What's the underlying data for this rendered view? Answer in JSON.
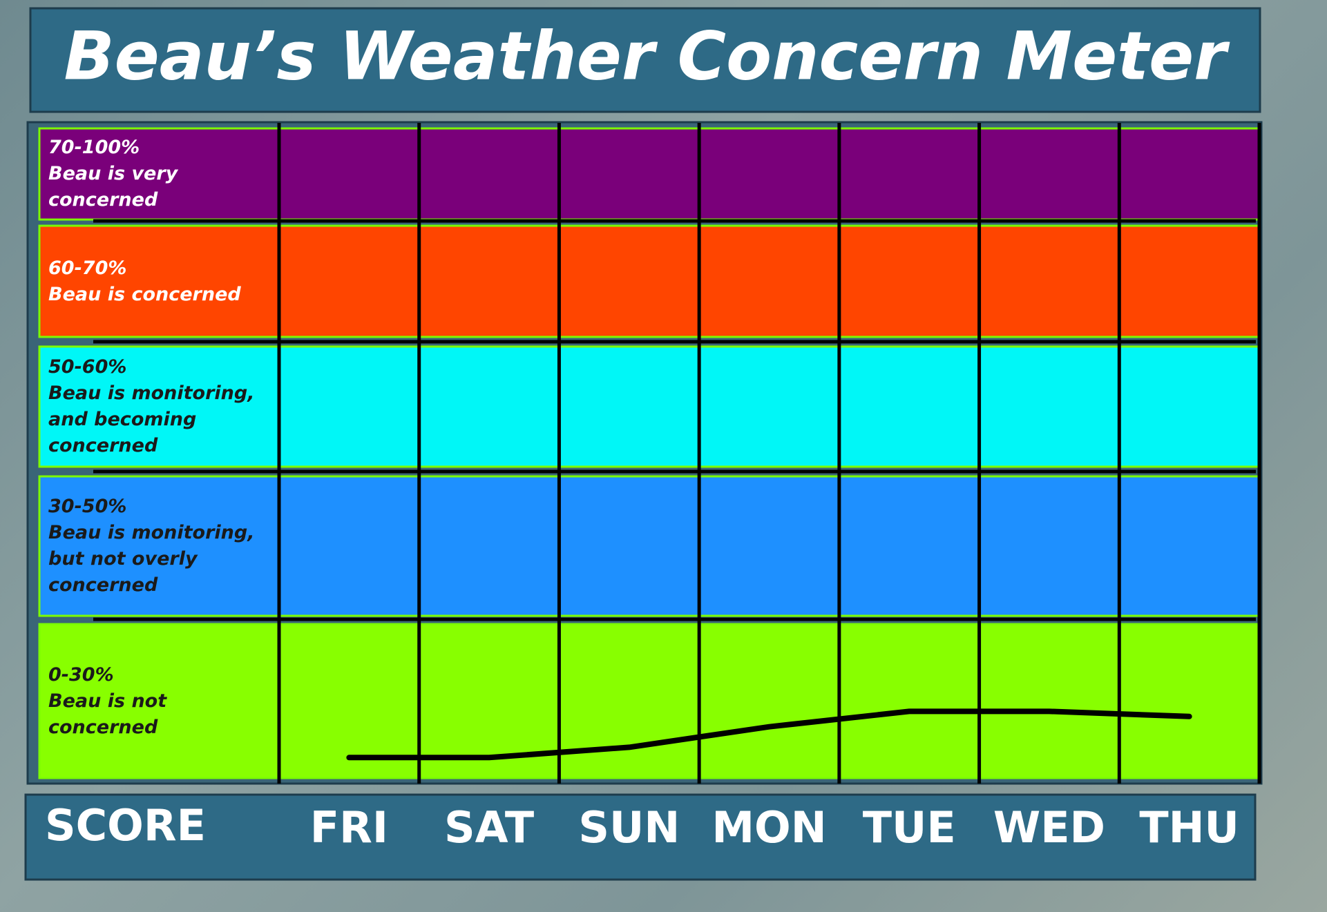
{
  "chart_data": {
    "type": "line",
    "title": "Beau’s Weather Concern Meter",
    "score_label": "SCORE",
    "categories": [
      "FRI",
      "SAT",
      "SUN",
      "MON",
      "TUE",
      "WED",
      "THU"
    ],
    "values": [
      4,
      4,
      6,
      10,
      13,
      13,
      12
    ],
    "color": "#000000",
    "ylim": [
      0,
      100
    ],
    "bands": [
      {
        "label": "70-100%",
        "text": "Beau is very concerned",
        "from": 70,
        "to": 100,
        "color": "#7a007a"
      },
      {
        "label": "60-70%",
        "text": "Beau is concerned",
        "from": 60,
        "to": 70,
        "color": "#ff4500"
      },
      {
        "label": "50-60%",
        "text": "Beau is monitoring, and becoming concerned",
        "from": 50,
        "to": 60,
        "color": "#00f7f7"
      },
      {
        "label": "30-50%",
        "text": "Beau is monitoring, but not overly concerned",
        "from": 30,
        "to": 50,
        "color": "#1e90ff"
      },
      {
        "label": "0-30%",
        "text": "Beau is not concerned",
        "from": 0,
        "to": 30,
        "color": "#88ff00"
      }
    ]
  }
}
